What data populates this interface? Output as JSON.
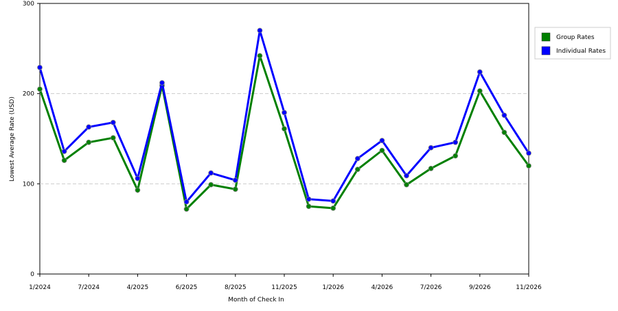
{
  "chart_data": {
    "type": "line",
    "x_label": "Month of Check In",
    "y_label": "Lowest Average Rate (USD)",
    "categories": [
      "1/2024",
      null,
      "7/2024",
      null,
      "4/2025",
      null,
      "6/2025",
      null,
      "8/2025",
      null,
      "11/2025",
      null,
      "1/2026",
      null,
      "4/2026",
      null,
      "7/2026",
      null,
      "9/2026",
      null,
      "11/2026"
    ],
    "series": [
      {
        "name": "Group Rates",
        "color": "#008000",
        "values": [
          205,
          126,
          146,
          151,
          93,
          209,
          72,
          99,
          94,
          242,
          161,
          75,
          73,
          116,
          137,
          99,
          117,
          131,
          203,
          157,
          120
        ]
      },
      {
        "name": "Individual Rates",
        "color": "#0000ff",
        "values": [
          229,
          136,
          163,
          168,
          106,
          212,
          80,
          112,
          104,
          270,
          179,
          83,
          81,
          128,
          148,
          109,
          140,
          146,
          224,
          176,
          134
        ]
      }
    ],
    "ylim": [
      0,
      300
    ],
    "yticks": [
      0,
      100,
      200,
      300
    ],
    "grid": true,
    "legend": "top-right"
  }
}
